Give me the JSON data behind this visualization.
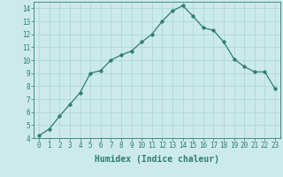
{
  "x": [
    0,
    1,
    2,
    3,
    4,
    5,
    6,
    7,
    8,
    9,
    10,
    11,
    12,
    13,
    14,
    15,
    16,
    17,
    18,
    19,
    20,
    21,
    22,
    23
  ],
  "y": [
    4.2,
    4.7,
    5.7,
    6.6,
    7.5,
    9.0,
    9.2,
    10.0,
    10.4,
    10.7,
    11.4,
    12.0,
    13.0,
    13.8,
    14.2,
    13.4,
    12.5,
    12.3,
    11.4,
    10.1,
    9.5,
    9.1,
    9.1,
    7.8
  ],
  "line_color": "#2e7d6e",
  "marker": "o",
  "marker_size": 2.5,
  "bg_color": "#cceaea",
  "grid_color": "#aad4d4",
  "xlabel": "Humidex (Indice chaleur)",
  "xlim": [
    -0.5,
    23.5
  ],
  "ylim": [
    4,
    14.5
  ],
  "yticks": [
    4,
    5,
    6,
    7,
    8,
    9,
    10,
    11,
    12,
    13,
    14
  ],
  "xticks": [
    0,
    1,
    2,
    3,
    4,
    5,
    6,
    7,
    8,
    9,
    10,
    11,
    12,
    13,
    14,
    15,
    16,
    17,
    18,
    19,
    20,
    21,
    22,
    23
  ],
  "label_fontsize": 7,
  "tick_fontsize": 5.5
}
